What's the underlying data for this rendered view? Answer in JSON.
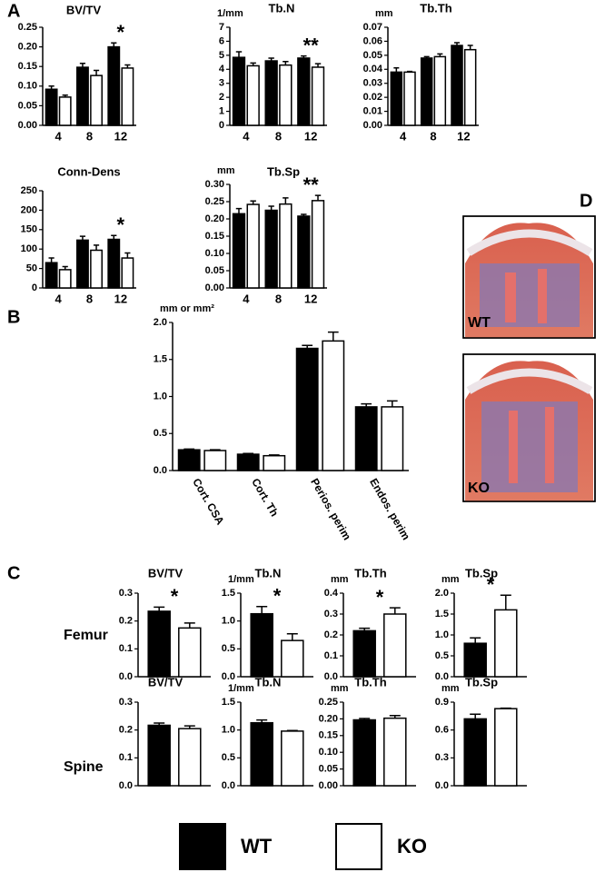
{
  "panel_labels": [
    "A",
    "B",
    "C",
    "D"
  ],
  "row_labels": [
    "Femur",
    "Spine"
  ],
  "image_labels": [
    "WT",
    "KO"
  ],
  "legend": [
    {
      "name": "WT",
      "color": "#000000"
    },
    {
      "name": "KO",
      "color": "#ffffff"
    }
  ],
  "chart_data": [
    {
      "type": "bar",
      "title": "BV/TV",
      "categories": [
        "4",
        "8",
        "12"
      ],
      "series": [
        {
          "color": "#000000",
          "values": [
            0.092,
            0.148,
            0.2
          ],
          "errors": [
            0.008,
            0.01,
            0.01
          ]
        },
        {
          "color": "#ffffff",
          "values": [
            0.072,
            0.127,
            0.146
          ],
          "errors": [
            0.005,
            0.013,
            0.008
          ]
        }
      ],
      "significance": [
        null,
        null,
        "*"
      ],
      "ylim": [
        0,
        0.25
      ],
      "yticks": [
        {
          "value": 0,
          "label": "0.00"
        },
        0.05,
        {
          "value": 0.1,
          "label": "0.10"
        },
        0.15,
        {
          "value": 0.2,
          "label": "0.20"
        },
        0.25
      ]
    },
    {
      "type": "bar",
      "title": "Tb.N",
      "unit": "1/mm",
      "categories": [
        "4",
        "8",
        "12"
      ],
      "series": [
        {
          "color": "#000000",
          "values": [
            4.85,
            4.6,
            4.8
          ],
          "errors": [
            0.4,
            0.2,
            0.15
          ]
        },
        {
          "color": "#ffffff",
          "values": [
            4.25,
            4.3,
            4.15
          ],
          "errors": [
            0.2,
            0.25,
            0.25
          ]
        }
      ],
      "significance": [
        null,
        null,
        "**"
      ],
      "ylim": [
        0,
        7
      ],
      "yticks": [
        0,
        1,
        2,
        3,
        4,
        5,
        6,
        7
      ]
    },
    {
      "type": "bar",
      "title": "Tb.Th",
      "unit": "mm",
      "categories": [
        "4",
        "8",
        "12"
      ],
      "series": [
        {
          "color": "#000000",
          "values": [
            0.038,
            0.048,
            0.057
          ],
          "errors": [
            0.003,
            0.001,
            0.002
          ]
        },
        {
          "color": "#ffffff",
          "values": [
            0.038,
            0.049,
            0.054
          ],
          "errors": [
            0.0005,
            0.002,
            0.003
          ]
        }
      ],
      "ylim": [
        0,
        0.07
      ],
      "yticks": [
        {
          "value": 0,
          "label": "0.00"
        },
        0.01,
        0.02,
        0.03,
        0.04,
        0.05,
        0.06,
        0.07
      ]
    },
    {
      "type": "bar",
      "title": "Conn-Dens",
      "categories": [
        "4",
        "8",
        "12"
      ],
      "series": [
        {
          "color": "#000000",
          "values": [
            65,
            123,
            125
          ],
          "errors": [
            12,
            10,
            10
          ]
        },
        {
          "color": "#ffffff",
          "values": [
            47,
            97,
            77
          ],
          "errors": [
            8,
            13,
            13
          ]
        }
      ],
      "significance": [
        null,
        null,
        "*"
      ],
      "ylim": [
        0,
        250
      ],
      "yticks": [
        0,
        50,
        100,
        150,
        200,
        250
      ]
    },
    {
      "type": "bar",
      "title": "Tb.Sp",
      "unit": "mm",
      "categories": [
        "4",
        "8",
        "12"
      ],
      "series": [
        {
          "color": "#000000",
          "values": [
            0.215,
            0.225,
            0.208
          ],
          "errors": [
            0.015,
            0.012,
            0.005
          ]
        },
        {
          "color": "#ffffff",
          "values": [
            0.242,
            0.243,
            0.253
          ],
          "errors": [
            0.01,
            0.018,
            0.015
          ]
        }
      ],
      "significance": [
        null,
        null,
        "**"
      ],
      "ylim": [
        0,
        0.3
      ],
      "yticks": [
        {
          "value": 0,
          "label": "0.00"
        },
        0.05,
        {
          "value": 0.1,
          "label": "0.10"
        },
        0.15,
        {
          "value": 0.2,
          "label": "0.20"
        },
        0.25,
        {
          "value": 0.3,
          "label": "0.30"
        }
      ]
    },
    {
      "type": "bar",
      "unit": "mm or mm²",
      "categories": [
        "Cort. CSA",
        "Cort. Th",
        "Perios. perim",
        "Endos. perim"
      ],
      "series": [
        {
          "color": "#000000",
          "values": [
            0.28,
            0.22,
            1.65,
            0.86
          ],
          "errors": [
            0.01,
            0.01,
            0.04,
            0.04
          ]
        },
        {
          "color": "#ffffff",
          "values": [
            0.27,
            0.2,
            1.75,
            0.86
          ],
          "errors": [
            0.01,
            0.01,
            0.12,
            0.08
          ]
        }
      ],
      "ylim": [
        0,
        2
      ],
      "yticks": [
        {
          "value": 0,
          "label": "0.0"
        },
        0.5,
        {
          "value": 1,
          "label": "1.0"
        },
        1.5,
        {
          "value": 2,
          "label": "2.0"
        }
      ]
    },
    {
      "type": "bar",
      "title": "BV/TV",
      "categories": [
        null
      ],
      "series": [
        {
          "color": "#000000",
          "values": [
            0.235
          ],
          "errors": [
            0.015
          ]
        },
        {
          "color": "#ffffff",
          "values": [
            0.175
          ],
          "errors": [
            0.018
          ]
        }
      ],
      "significance": [
        "*"
      ],
      "ylim": [
        0,
        0.3
      ],
      "yticks": [
        {
          "value": 0,
          "label": "0.0"
        },
        0.1,
        0.2,
        0.3
      ]
    },
    {
      "type": "bar",
      "title": "Tb.N",
      "unit": "1/mm",
      "categories": [
        null
      ],
      "series": [
        {
          "color": "#000000",
          "values": [
            1.13
          ],
          "errors": [
            0.13
          ]
        },
        {
          "color": "#ffffff",
          "values": [
            0.65
          ],
          "errors": [
            0.12
          ]
        }
      ],
      "significance": [
        "*"
      ],
      "ylim": [
        0,
        1.5
      ],
      "yticks": [
        {
          "value": 0,
          "label": "0.0"
        },
        0.5,
        {
          "value": 1,
          "label": "1.0"
        },
        1.5
      ]
    },
    {
      "type": "bar",
      "title": "Tb.Th",
      "unit": "mm",
      "categories": [
        null
      ],
      "series": [
        {
          "color": "#000000",
          "values": [
            0.22
          ],
          "errors": [
            0.012
          ]
        },
        {
          "color": "#ffffff",
          "values": [
            0.3
          ],
          "errors": [
            0.03
          ]
        }
      ],
      "significance": [
        "*"
      ],
      "ylim": [
        0,
        0.4
      ],
      "yticks": [
        {
          "value": 0,
          "label": "0.0"
        },
        0.1,
        0.2,
        0.3,
        0.4
      ]
    },
    {
      "type": "bar",
      "title": "Tb.Sp",
      "unit": "mm",
      "categories": [
        null
      ],
      "series": [
        {
          "color": "#000000",
          "values": [
            0.8
          ],
          "errors": [
            0.13
          ]
        },
        {
          "color": "#ffffff",
          "values": [
            1.6
          ],
          "errors": [
            0.35
          ]
        }
      ],
      "significance": [
        "*"
      ],
      "ylim": [
        0,
        2
      ],
      "yticks": [
        {
          "value": 0,
          "label": "0.0"
        },
        0.5,
        {
          "value": 1,
          "label": "1.0"
        },
        1.5,
        {
          "value": 2,
          "label": "2.0"
        }
      ]
    },
    {
      "type": "bar",
      "title": "BV/TV",
      "categories": [
        null
      ],
      "series": [
        {
          "color": "#000000",
          "values": [
            0.217
          ],
          "errors": [
            0.008
          ]
        },
        {
          "color": "#ffffff",
          "values": [
            0.205
          ],
          "errors": [
            0.01
          ]
        }
      ],
      "ylim": [
        0,
        0.3
      ],
      "yticks": [
        {
          "value": 0,
          "label": "0.0"
        },
        0.1,
        0.2,
        0.3
      ]
    },
    {
      "type": "bar",
      "title": "Tb.N",
      "unit": "1/mm",
      "categories": [
        null
      ],
      "series": [
        {
          "color": "#000000",
          "values": [
            1.13
          ],
          "errors": [
            0.05
          ]
        },
        {
          "color": "#ffffff",
          "values": [
            0.98
          ],
          "errors": [
            0.01
          ]
        }
      ],
      "ylim": [
        0,
        1.5
      ],
      "yticks": [
        {
          "value": 0,
          "label": "0.0"
        },
        0.5,
        {
          "value": 1,
          "label": "1.0"
        },
        1.5
      ]
    },
    {
      "type": "bar",
      "title": "Tb.Th",
      "unit": "mm",
      "categories": [
        null
      ],
      "series": [
        {
          "color": "#000000",
          "values": [
            0.197
          ],
          "errors": [
            0.004
          ]
        },
        {
          "color": "#ffffff",
          "values": [
            0.202
          ],
          "errors": [
            0.008
          ]
        }
      ],
      "ylim": [
        0,
        0.25
      ],
      "yticks": [
        {
          "value": 0,
          "label": "0.00"
        },
        0.05,
        {
          "value": 0.1,
          "label": "0.10"
        },
        0.15,
        {
          "value": 0.2,
          "label": "0.20"
        },
        0.25
      ]
    },
    {
      "type": "bar",
      "title": "Tb.Sp",
      "unit": "mm",
      "categories": [
        null
      ],
      "series": [
        {
          "color": "#000000",
          "values": [
            0.72
          ],
          "errors": [
            0.05
          ]
        },
        {
          "color": "#ffffff",
          "values": [
            0.83
          ],
          "errors": [
            0.005
          ]
        }
      ],
      "ylim": [
        0,
        0.9
      ],
      "yticks": [
        {
          "value": 0,
          "label": "0.0"
        },
        0.3,
        0.6,
        0.9
      ]
    }
  ]
}
